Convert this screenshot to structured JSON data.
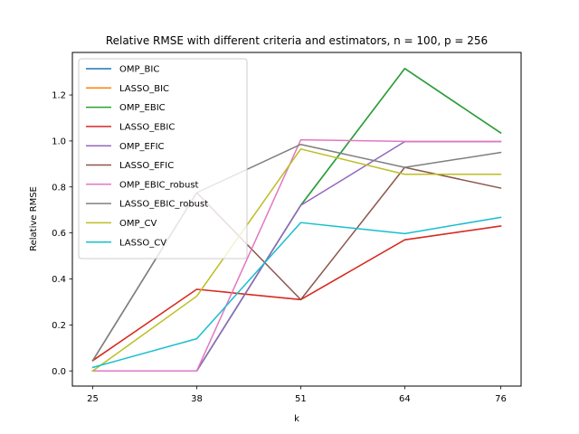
{
  "chart_data": {
    "type": "line",
    "title": "Relative RMSE with different criteria and estimators, n = 100, p = 256",
    "xlabel": "k",
    "ylabel": "Relative RMSE",
    "x": [
      25,
      38,
      51,
      64,
      76
    ],
    "x_tick_labels": [
      "25",
      "38",
      "51",
      "64",
      "76"
    ],
    "y_ticks": [
      0.0,
      0.2,
      0.4,
      0.6,
      0.8,
      1.0,
      1.2
    ],
    "y_tick_labels": [
      "0.0",
      "0.2",
      "0.4",
      "0.6",
      "0.8",
      "1.0",
      "1.2"
    ],
    "ylim": [
      -0.066,
      1.385
    ],
    "grid": false,
    "legend_position": "upper-left",
    "series": [
      {
        "name": "OMP_BIC",
        "color": "#1f77b4",
        "values": [
          0.0,
          0.0,
          0.72,
          1.315,
          1.035
        ]
      },
      {
        "name": "LASSO_BIC",
        "color": "#ff7f0e",
        "values": [
          0.045,
          0.355,
          0.31,
          0.57,
          0.63
        ]
      },
      {
        "name": "OMP_EBIC",
        "color": "#2ca02c",
        "values": [
          0.0,
          0.0,
          0.72,
          1.315,
          1.035
        ]
      },
      {
        "name": "LASSO_EBIC",
        "color": "#d62728",
        "values": [
          0.045,
          0.355,
          0.31,
          0.57,
          0.63
        ]
      },
      {
        "name": "OMP_EFIC",
        "color": "#9467bd",
        "values": [
          0.0,
          0.0,
          0.72,
          0.997,
          0.997
        ]
      },
      {
        "name": "LASSO_EFIC",
        "color": "#8c564b",
        "values": [
          0.045,
          0.775,
          0.31,
          0.885,
          0.795
        ]
      },
      {
        "name": "OMP_EBIC_robust",
        "color": "#e377c2",
        "values": [
          0.0,
          0.0,
          1.005,
          0.998,
          0.998
        ]
      },
      {
        "name": "LASSO_EBIC_robust",
        "color": "#7f7f7f",
        "values": [
          0.045,
          0.775,
          0.985,
          0.885,
          0.95
        ]
      },
      {
        "name": "OMP_CV",
        "color": "#bcbd22",
        "values": [
          0.0,
          0.325,
          0.965,
          0.855,
          0.855
        ]
      },
      {
        "name": "LASSO_CV",
        "color": "#17becf",
        "values": [
          0.015,
          0.14,
          0.645,
          0.597,
          0.668
        ]
      }
    ]
  }
}
